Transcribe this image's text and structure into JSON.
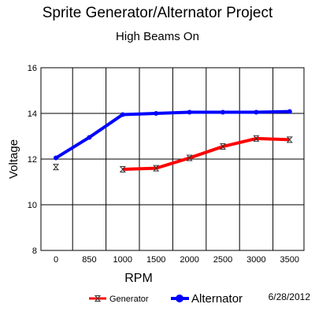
{
  "chart_data": {
    "type": "line",
    "title": "Sprite Generator/Alternator Project",
    "subtitle": "High Beams On",
    "xlabel": "RPM",
    "ylabel": "Voltage",
    "categories": [
      "0",
      "850",
      "1000",
      "1500",
      "2000",
      "2500",
      "3000",
      "3500"
    ],
    "ylim": [
      8,
      16
    ],
    "yticks": [
      8,
      10,
      12,
      14,
      16
    ],
    "grid": true,
    "legend_position": "bottom",
    "date_note": "6/28/2012",
    "series": [
      {
        "name": "Generator",
        "color": "#ff0000",
        "marker": "hourglass",
        "values": [
          11.65,
          null,
          11.55,
          11.6,
          12.05,
          12.55,
          12.9,
          12.85
        ]
      },
      {
        "name": "Alternator",
        "color": "#0000ff",
        "marker": "circle",
        "values": [
          12.05,
          12.95,
          13.95,
          14.0,
          14.05,
          14.05,
          14.05,
          14.08
        ]
      }
    ]
  }
}
